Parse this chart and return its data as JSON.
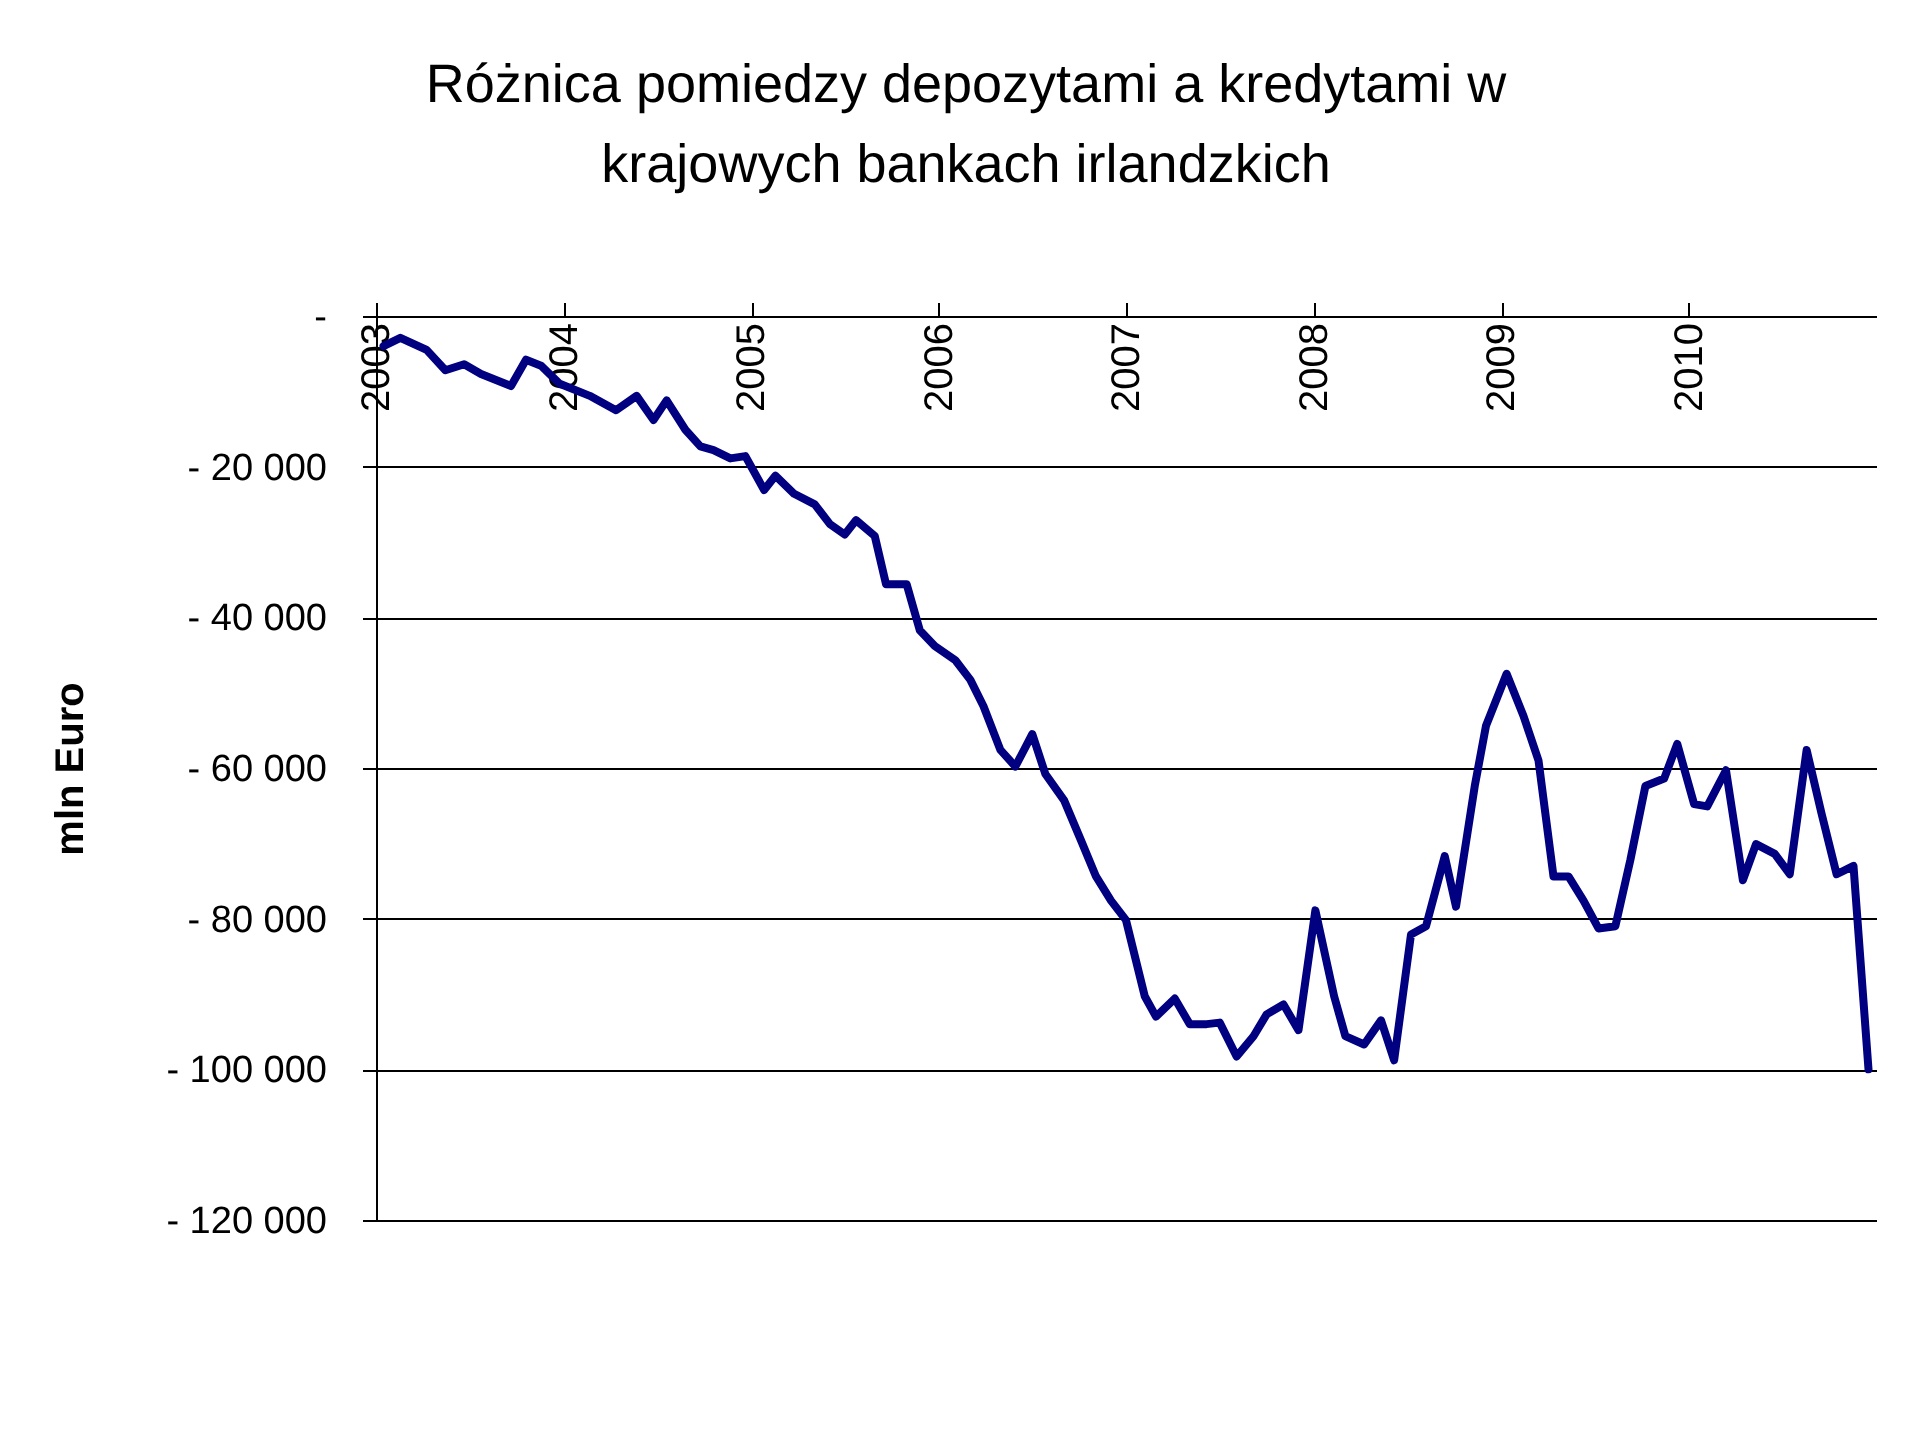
{
  "chart_data": {
    "type": "line",
    "title": "Różnica pomiedzy depozytami a kredytami w krajowych bankach irlandzkich",
    "ylabel": "mln Euro",
    "xlim": [
      2003,
      2011
    ],
    "xticks": [
      2003,
      2004,
      2005,
      2006,
      2007,
      2008,
      2009,
      2010
    ],
    "ylim": [
      -120000,
      0
    ],
    "yticks": [
      {
        "value": 0,
        "label": "-"
      },
      {
        "value": -20000,
        "label": "- 20 000"
      },
      {
        "value": -40000,
        "label": "- 40 000"
      },
      {
        "value": -60000,
        "label": "- 60 000"
      },
      {
        "value": -80000,
        "label": "- 80 000"
      },
      {
        "value": -100000,
        "label": "- 100 000"
      },
      {
        "value": -120000,
        "label": "- 120 000"
      }
    ],
    "grid": "y",
    "marker": "none",
    "line_style": "solid",
    "series": [
      {
        "color": "#000080",
        "x": [
          2003.04,
          2003.13,
          2003.27,
          2003.37,
          2003.47,
          2003.56,
          2003.72,
          2003.8,
          2003.88,
          2003.98,
          2004.14,
          2004.28,
          2004.39,
          2004.48,
          2004.55,
          2004.65,
          2004.73,
          2004.8,
          2004.89,
          2004.97,
          2005.07,
          2005.13,
          2005.23,
          2005.34,
          2005.42,
          2005.5,
          2005.56,
          2005.66,
          2005.72,
          2005.83,
          2005.9,
          2005.98,
          2006.09,
          2006.17,
          2006.24,
          2006.33,
          2006.41,
          2006.5,
          2006.57,
          2006.67,
          2006.76,
          2006.84,
          2006.92,
          2007.0,
          2007.1,
          2007.16,
          2007.26,
          2007.34,
          2007.43,
          2007.5,
          2007.59,
          2007.68,
          2007.75,
          2007.84,
          2007.92,
          2008.01,
          2008.11,
          2008.17,
          2008.27,
          2008.36,
          2008.43,
          2008.52,
          2008.6,
          2008.7,
          2008.76,
          2008.86,
          2008.92,
          2009.03,
          2009.12,
          2009.2,
          2009.28,
          2009.36,
          2009.44,
          2009.52,
          2009.61,
          2009.69,
          2009.77,
          2009.87,
          2009.94,
          2010.03,
          2010.1,
          2010.2,
          2010.29,
          2010.36,
          2010.46,
          2010.54,
          2010.63,
          2010.71,
          2010.79,
          2010.88,
          2010.96
        ],
        "values": [
          -4000,
          -2900,
          -4500,
          -7200,
          -6400,
          -7700,
          -9300,
          -5800,
          -6600,
          -9000,
          -10600,
          -12500,
          -10600,
          -13800,
          -11200,
          -15100,
          -17300,
          -17800,
          -18900,
          -18600,
          -23100,
          -21200,
          -23600,
          -25000,
          -27600,
          -29000,
          -27100,
          -29200,
          -35600,
          -35600,
          -41700,
          -43800,
          -45700,
          -48300,
          -51800,
          -57600,
          -59800,
          -55500,
          -60800,
          -64300,
          -69600,
          -74400,
          -77600,
          -80200,
          -90300,
          -93000,
          -90600,
          -94000,
          -94000,
          -93800,
          -98300,
          -95600,
          -92700,
          -91400,
          -94800,
          -78900,
          -90300,
          -95600,
          -96700,
          -93500,
          -98800,
          -82100,
          -81000,
          -71700,
          -78400,
          -62400,
          -54400,
          -47500,
          -53100,
          -59000,
          -74400,
          -74400,
          -77600,
          -81300,
          -81000,
          -72200,
          -62400,
          -61400,
          -56800,
          -64800,
          -65100,
          -60300,
          -74900,
          -70100,
          -71400,
          -74100,
          -57600,
          -66100,
          -74100,
          -73000,
          -100000
        ]
      }
    ]
  }
}
